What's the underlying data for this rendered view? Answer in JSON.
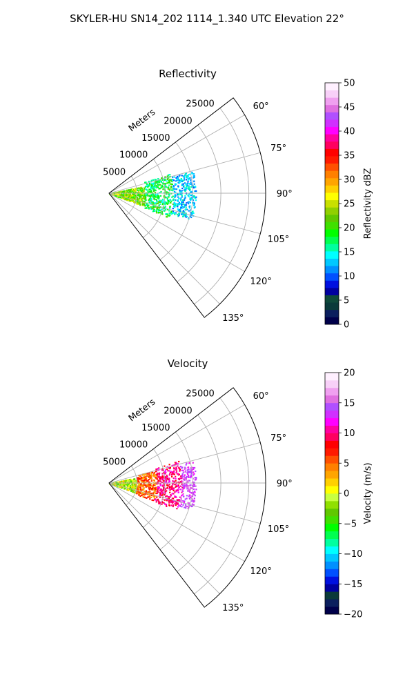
{
  "suptitle": "SKYLER-HU  SN14_202  1114_1.340 UTC Elevation 22°",
  "colors": {
    "grid": "#b0b0b0",
    "frame": "#000000",
    "reflectivity_colormap": [
      "#00004a",
      "#0b1f5e",
      "#0a3a3a",
      "#0f4a3a",
      "#0000a0",
      "#0010e0",
      "#0050ff",
      "#0090ff",
      "#00c8ff",
      "#00ffff",
      "#00ff9f",
      "#00ff50",
      "#00ff00",
      "#40e000",
      "#60c800",
      "#90d000",
      "#c8e000",
      "#ffff00",
      "#ffd000",
      "#ffa500",
      "#ff8000",
      "#ff5000",
      "#ff1a00",
      "#ff0000",
      "#ff0060",
      "#ff00a0",
      "#ff00ff",
      "#d030ff",
      "#b050ff",
      "#e070e0",
      "#f0a0f0",
      "#f8d0f8",
      "#fff0ff"
    ],
    "velocity_colormap": [
      "#00004a",
      "#0b1f5e",
      "#0a3a3a",
      "#0000a0",
      "#0010e0",
      "#0050ff",
      "#0090ff",
      "#00c8ff",
      "#00ffff",
      "#00ff9f",
      "#00ff50",
      "#00ff00",
      "#40e000",
      "#60c800",
      "#90e000",
      "#c8ff40",
      "#ffff00",
      "#ffd000",
      "#ffa500",
      "#ff8000",
      "#ff5000",
      "#ff1a00",
      "#ff0000",
      "#ff0060",
      "#ff00a0",
      "#ff00ff",
      "#d030ff",
      "#b050ff",
      "#e070e0",
      "#f0a0f0",
      "#f8d0f8",
      "#fff0ff"
    ]
  },
  "chart_data": [
    {
      "type": "polar",
      "title": "Reflectivity",
      "radial_label": "Meters",
      "radial_ticks": [
        5000,
        10000,
        15000,
        20000,
        25000
      ],
      "radial_tick_labels": [
        "5000",
        "10000",
        "15000",
        "20000",
        "25000"
      ],
      "rlim": [
        0,
        28000
      ],
      "theta_range_deg": [
        52.5,
        142.5
      ],
      "theta_ticks_deg": [
        60,
        75,
        90,
        105,
        120,
        135
      ],
      "theta_tick_labels": [
        "60°",
        "75°",
        "90°",
        "105°",
        "120°",
        "135°"
      ],
      "colorbar": {
        "label": "Reflectivity dBZ",
        "range": [
          0,
          50
        ],
        "ticks": [
          0,
          5,
          10,
          15,
          20,
          25,
          30,
          35,
          40,
          45,
          50
        ],
        "tick_labels": [
          "0",
          "5",
          "10",
          "15",
          "20",
          "25",
          "30",
          "35",
          "40",
          "45",
          "50"
        ]
      },
      "echo_regions": [
        {
          "r_range_m": [
            0,
            6500
          ],
          "theta_range_deg": [
            78,
            110
          ],
          "value_range": [
            18,
            27
          ]
        },
        {
          "r_range_m": [
            6500,
            11500
          ],
          "theta_range_deg": [
            72,
            112
          ],
          "value_range": [
            14,
            22
          ]
        },
        {
          "r_range_m": [
            11500,
            15500
          ],
          "theta_range_deg": [
            75,
            108
          ],
          "value_range": [
            10,
            16
          ]
        }
      ]
    },
    {
      "type": "polar",
      "title": "Velocity",
      "radial_label": "Meters",
      "radial_ticks": [
        5000,
        10000,
        15000,
        20000,
        25000
      ],
      "radial_tick_labels": [
        "5000",
        "10000",
        "15000",
        "20000",
        "25000"
      ],
      "rlim": [
        0,
        28000
      ],
      "theta_range_deg": [
        52.5,
        142.5
      ],
      "theta_ticks_deg": [
        60,
        75,
        90,
        105,
        120,
        135
      ],
      "theta_tick_labels": [
        "60°",
        "75°",
        "90°",
        "105°",
        "120°",
        "135°"
      ],
      "colorbar": {
        "label": "Velocity (m/s)",
        "range": [
          -20,
          20
        ],
        "ticks": [
          -20,
          -15,
          -10,
          -5,
          0,
          5,
          10,
          15,
          20
        ],
        "tick_labels": [
          "−20",
          "−15",
          "−10",
          "−5",
          "0",
          "5",
          "10",
          "15",
          "20"
        ]
      },
      "echo_regions": [
        {
          "r_range_m": [
            0,
            5000
          ],
          "theta_range_deg": [
            78,
            110
          ],
          "value_range": [
            -5,
            3
          ]
        },
        {
          "r_range_m": [
            5000,
            8500
          ],
          "theta_range_deg": [
            74,
            112
          ],
          "value_range": [
            2,
            8
          ]
        },
        {
          "r_range_m": [
            8500,
            13000
          ],
          "theta_range_deg": [
            72,
            112
          ],
          "value_range": [
            8,
            12
          ]
        },
        {
          "r_range_m": [
            13000,
            15500
          ],
          "theta_range_deg": [
            75,
            108
          ],
          "value_range": [
            12,
            16
          ]
        }
      ]
    }
  ]
}
